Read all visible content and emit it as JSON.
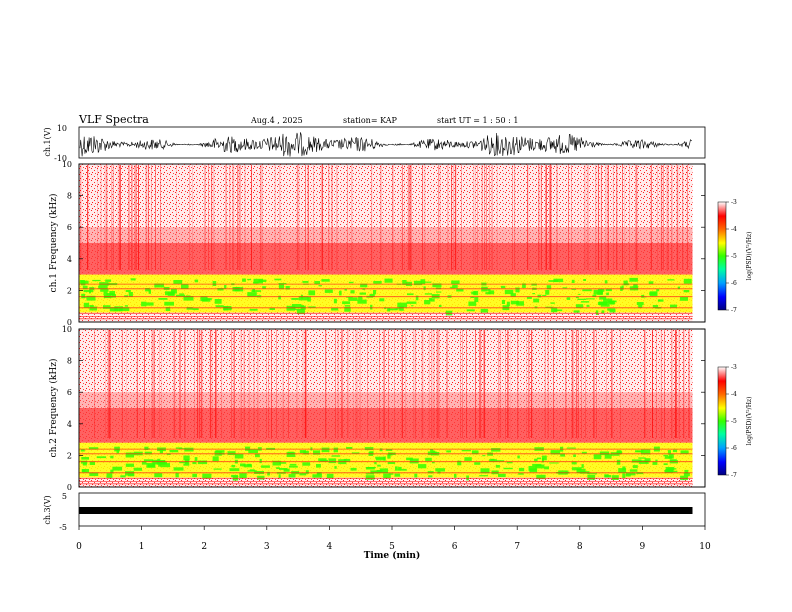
{
  "header": {
    "title": "VLF Spectra",
    "date": "Aug.4 , 2025",
    "station": "station= KAP",
    "start": "start UT = 1 : 50 : 1"
  },
  "chart_data": [
    {
      "type": "line",
      "name": "ch1-waveform",
      "ylabel": "ch.1(V)",
      "ylim": [
        -10,
        10
      ],
      "ytick_labels": [
        "10",
        "-10"
      ],
      "xlim": [
        0,
        10
      ]
    },
    {
      "type": "heatmap",
      "name": "ch1-spectrogram",
      "ylabel": "ch.1 Frequency (kHz)",
      "ylim": [
        0,
        10
      ],
      "yticks": [
        0,
        2,
        4,
        6,
        8,
        10
      ],
      "colorbar": {
        "label": "log(PSD)(V²/Hz)",
        "range": [
          -7,
          -3
        ],
        "ticks": [
          -3,
          -4,
          -5,
          -6,
          -7
        ]
      }
    },
    {
      "type": "heatmap",
      "name": "ch2-spectrogram",
      "ylabel": "ch.2 Frequency (kHz)",
      "ylim": [
        0,
        10
      ],
      "yticks": [
        0,
        2,
        4,
        6,
        8,
        10
      ],
      "colorbar": {
        "label": "log(PSD)(V²/Hz)",
        "range": [
          -7,
          -3
        ],
        "ticks": [
          -3,
          -4,
          -5,
          -6,
          -7
        ]
      }
    },
    {
      "type": "line",
      "name": "ch3-waveform",
      "ylabel": "ch.3(V)",
      "ylim": [
        -5,
        5
      ],
      "ytick_labels": [
        "5",
        "-5"
      ],
      "xlabel": "Time (min)",
      "xlim": [
        0,
        10
      ],
      "xticks": [
        0,
        1,
        2,
        3,
        4,
        5,
        6,
        7,
        8,
        9,
        10
      ],
      "data_end_min": 9.8
    }
  ],
  "colors": {
    "low_band": "#ffff00",
    "green": "#33ff00",
    "red": "#ff0000",
    "pale": "#ffdede"
  }
}
